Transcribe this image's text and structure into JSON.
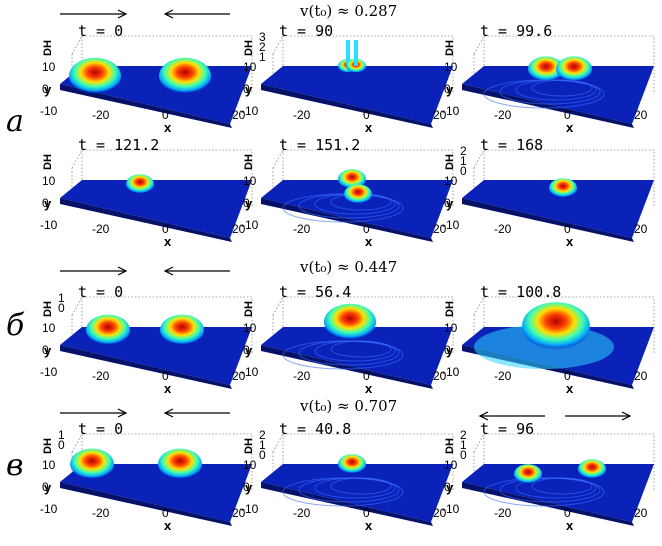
{
  "velocities": {
    "a": "v(t₀) ≈ 0.287",
    "b": "v(t₀) ≈ 0.447",
    "c": "v(t₀) ≈ 0.707"
  },
  "row_labels": [
    "a",
    "б",
    "в"
  ],
  "axis": {
    "dh_label": "DH",
    "y_label": "y",
    "x_label": "x",
    "y_ticks": [
      "10",
      "0",
      "-10"
    ],
    "x_ticks": [
      "-20",
      "0",
      "20"
    ]
  },
  "panels": [
    {
      "time": "t = 0"
    },
    {
      "time": "t = 90",
      "dh_ticks": [
        "3",
        "2",
        "1"
      ]
    },
    {
      "time": "t = 99.6"
    },
    {
      "time": "t = 121.2"
    },
    {
      "time": "t = 151.2"
    },
    {
      "time": "t = 168",
      "dh_ticks": [
        "2",
        "1",
        "0"
      ]
    },
    {
      "time": "t = 0",
      "dh_ticks": [
        "1",
        "0"
      ]
    },
    {
      "time": "t = 56.4"
    },
    {
      "time": "t = 100.8"
    },
    {
      "time": "t = 0",
      "dh_ticks": [
        "1",
        "0"
      ]
    },
    {
      "time": "t = 40.8",
      "dh_ticks": [
        "2",
        "1",
        "0"
      ]
    },
    {
      "time": "t = 96",
      "dh_ticks": [
        "2",
        "1",
        "0"
      ]
    }
  ]
}
